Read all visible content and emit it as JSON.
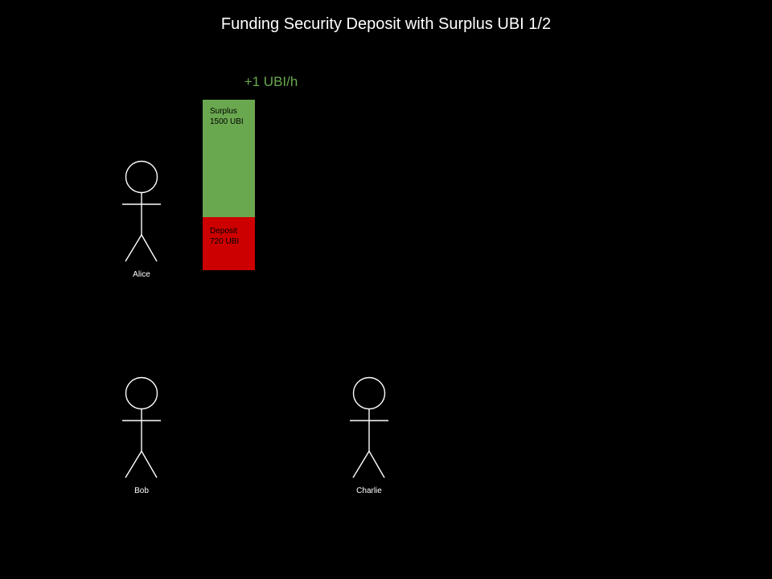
{
  "title": "Funding Security Deposit with Surplus UBI 1/2",
  "rate_label": "+1 UBI/h",
  "colors": {
    "background": "#000000",
    "surplus": "#6aa84f",
    "deposit": "#cc0000",
    "rate_text": "#6aa84f",
    "actor_stroke": "#ffffff"
  },
  "alice_account": {
    "surplus": {
      "label": "Surplus",
      "amount": "1500 UBI"
    },
    "deposit": {
      "label": "Deposit",
      "amount": "720 UBI"
    }
  },
  "actors": [
    {
      "name": "Alice",
      "icon": "stick-figure-icon"
    },
    {
      "name": "Bob",
      "icon": "stick-figure-icon"
    },
    {
      "name": "Charlie",
      "icon": "stick-figure-icon"
    }
  ]
}
